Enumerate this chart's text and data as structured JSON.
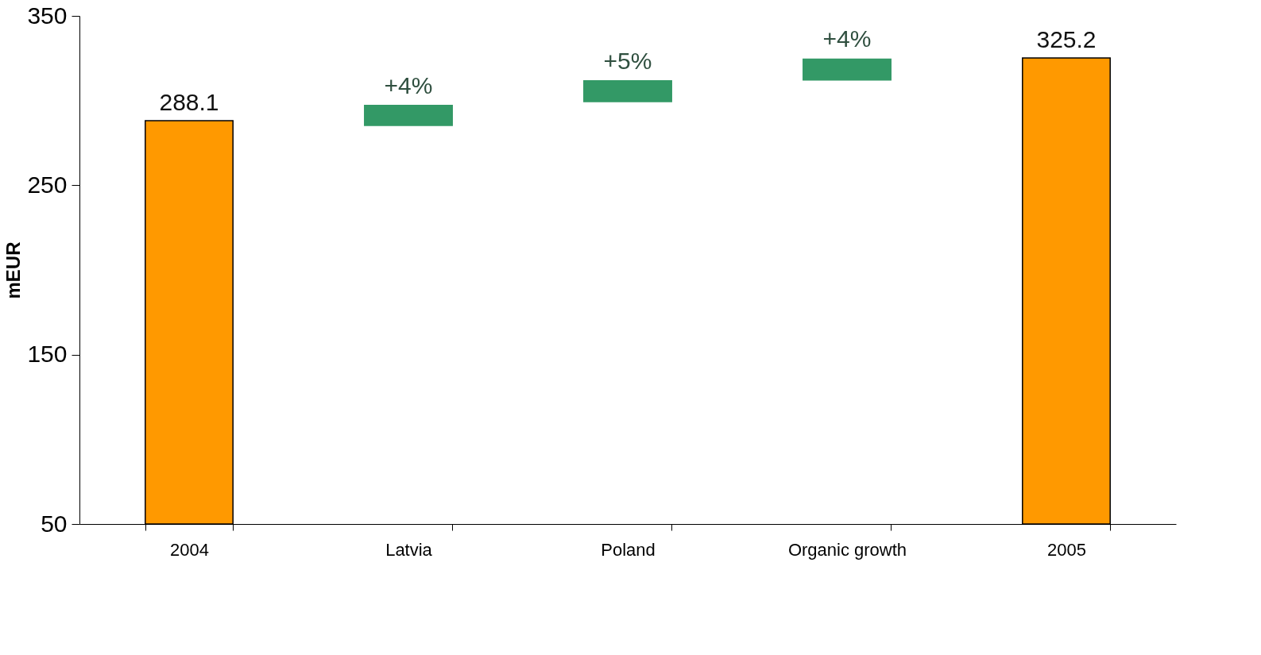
{
  "chart_data": {
    "type": "bar",
    "ylabel": "mEUR",
    "categories": [
      "2004",
      "Latvia",
      "Poland",
      "Organic growth",
      "2005"
    ],
    "values": [
      288.1,
      11.9,
      12.3,
      12.3,
      325.2
    ],
    "base": [
      null,
      285.3,
      299.4,
      312.2,
      null
    ],
    "colors": [
      "#ff9900",
      "#339966",
      "#339966",
      "#339966",
      "#ff9900"
    ],
    "value_labels": [
      "288.1",
      null,
      null,
      null,
      "325.2"
    ],
    "annotations": [
      {
        "text": "+4%",
        "x": "Latvia",
        "y": 297.2
      },
      {
        "text": "+5%",
        "x": "Poland",
        "y": 311.7
      },
      {
        "text": "+4%",
        "x": "Organic growth",
        "y": 324.5
      }
    ],
    "ylim": [
      50,
      350
    ],
    "yticks": [
      50,
      150,
      250,
      350
    ],
    "grid": false
  }
}
